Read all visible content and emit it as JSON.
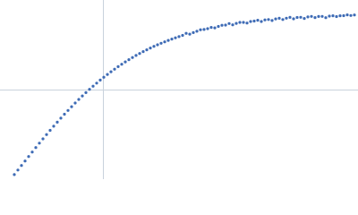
{
  "chart_data": {
    "type": "scatter",
    "color": "#3e6bb5",
    "grid": true,
    "xlim": [
      0,
      400
    ],
    "ylim": [
      0,
      200
    ],
    "xticks": [
      115
    ],
    "yticks": [
      100
    ],
    "x": [
      16,
      20,
      24,
      28,
      32,
      36,
      40,
      44,
      48,
      52,
      56,
      60,
      64,
      68,
      72,
      76,
      80,
      84,
      88,
      92,
      96,
      100,
      104,
      108,
      112,
      116,
      120,
      124,
      128,
      132,
      136,
      140,
      144,
      148,
      152,
      156,
      160,
      164,
      168,
      172,
      176,
      180,
      184,
      188,
      192,
      196,
      200,
      204,
      208,
      212,
      216,
      220,
      224,
      228,
      232,
      236,
      240,
      244,
      248,
      252,
      256,
      260,
      264,
      268,
      272,
      276,
      280,
      284,
      288,
      292,
      296,
      300,
      304,
      308,
      312,
      316,
      320,
      324,
      328,
      332,
      336,
      340,
      344,
      348,
      352,
      356,
      360,
      364,
      368,
      372,
      376,
      380,
      384,
      388,
      392,
      396
    ],
    "values": [
      5.1,
      10.2,
      15.3,
      20.3,
      25.3,
      30.3,
      35.3,
      40.2,
      45.0,
      49.8,
      54.5,
      59.1,
      63.6,
      68.1,
      72.5,
      76.7,
      80.9,
      85.0,
      89.0,
      92.9,
      96.6,
      100.3,
      103.8,
      107.2,
      110.6,
      113.8,
      116.9,
      119.9,
      122.8,
      125.6,
      128.3,
      130.9,
      133.4,
      135.8,
      138.1,
      140.3,
      142.4,
      144.4,
      146.4,
      148.3,
      150.0,
      151.7,
      153.3,
      154.9,
      156.4,
      157.8,
      159.1,
      160.5,
      162.8,
      161.9,
      163.6,
      165.1,
      166.8,
      167.1,
      168.0,
      169.4,
      168.9,
      170.5,
      171.8,
      172.0,
      173.7,
      172.3,
      173.9,
      175.0,
      175.0,
      174.3,
      176.0,
      176.5,
      177.4,
      176.0,
      177.8,
      178.2,
      177.1,
      178.9,
      179.6,
      178.2,
      179.7,
      180.6,
      179.0,
      180.5,
      180.7,
      179.4,
      181.1,
      181.7,
      180.4,
      181.6,
      181.7,
      180.3,
      182.0,
      182.4,
      181.5,
      182.4,
      182.5,
      183.4,
      182.7,
      183.3
    ]
  }
}
